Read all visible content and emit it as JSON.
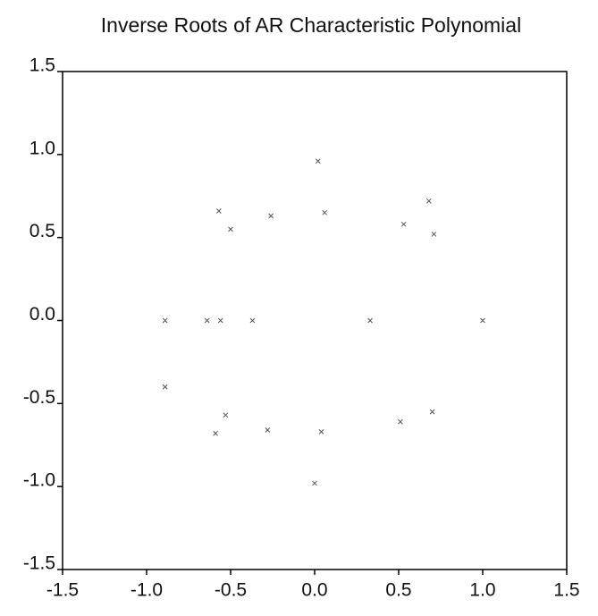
{
  "chart_data": {
    "type": "scatter",
    "title": "Inverse Roots of AR Characteristic Polynomial",
    "x": [
      0.02,
      -0.57,
      -0.5,
      -0.26,
      0.06,
      0.53,
      0.68,
      0.71,
      -0.89,
      -0.64,
      -0.56,
      -0.37,
      0.33,
      1.0,
      -0.89,
      -0.53,
      -0.59,
      -0.28,
      0.04,
      0.51,
      0.7,
      0.0
    ],
    "values": [
      0.96,
      0.66,
      0.55,
      0.63,
      0.65,
      0.58,
      0.72,
      0.52,
      0.0,
      0.0,
      0.0,
      0.0,
      0.0,
      0.0,
      -0.4,
      -0.57,
      -0.68,
      -0.66,
      -0.67,
      -0.61,
      -0.55,
      -0.98
    ],
    "color": "#555555",
    "xlim": [
      -1.5,
      1.5
    ],
    "ylim": [
      -1.5,
      1.5
    ],
    "xticks": [
      -1.5,
      {
        "value": -1.0,
        "label": "-1.0"
      },
      -0.5,
      {
        "value": 0.0,
        "label": "0.0"
      },
      0.5,
      {
        "value": 1.0,
        "label": "1.0"
      },
      1.5
    ],
    "yticks": [
      1.5,
      {
        "value": 1.0,
        "label": "1.0"
      },
      0.5,
      {
        "value": 0.0,
        "label": "0.0"
      },
      -0.5,
      {
        "value": -1.0,
        "label": "-1.0"
      },
      -1.5
    ],
    "grid": false
  }
}
